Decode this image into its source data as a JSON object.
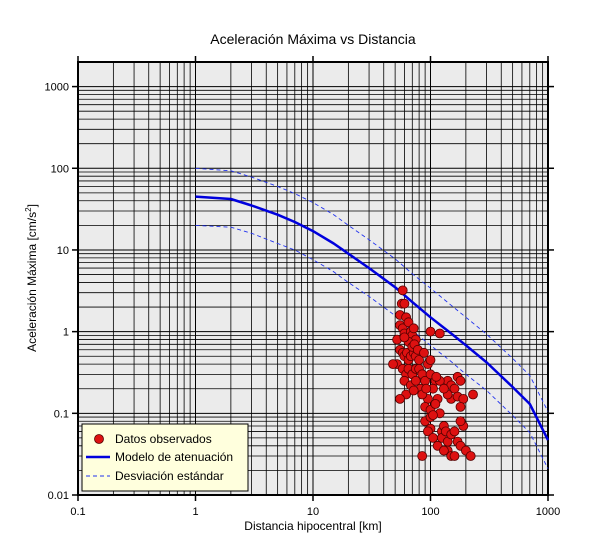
{
  "chart_data": {
    "type": "scatter",
    "title": "Aceleración Máxima vs Distancia",
    "xlabel": "Distancia hipocentral [km]",
    "ylabel_main": "Aceleración Máxima [cm/s",
    "ylabel_sup": "2",
    "ylabel_close": "]",
    "x_scale": "log",
    "y_scale": "log",
    "xlim": [
      0.1,
      1000
    ],
    "ylim": [
      0.01,
      2000
    ],
    "x_ticks": [
      {
        "value": 0.1,
        "label": "0.1"
      },
      {
        "value": 1,
        "label": "1"
      },
      {
        "value": 10,
        "label": "10"
      },
      {
        "value": 100,
        "label": "100"
      },
      {
        "value": 1000,
        "label": "1000"
      }
    ],
    "y_ticks": [
      {
        "value": 0.01,
        "label": "0.01"
      },
      {
        "value": 0.1,
        "label": "0.1"
      },
      {
        "value": 1,
        "label": "1"
      },
      {
        "value": 10,
        "label": "10"
      },
      {
        "value": 100,
        "label": "100"
      },
      {
        "value": 1000,
        "label": "1000"
      }
    ],
    "grid": true,
    "legend_position": "bottom-left",
    "colors": {
      "plot_background": "#ebebeb",
      "grid": "#000000",
      "points": "#dd1111",
      "model": "#0000dd",
      "deviation": "#2233ee",
      "legend_background": "#ffffdd"
    },
    "series": [
      {
        "name": "Datos observados",
        "kind": "scatter",
        "points": [
          [
            55,
            1.6
          ],
          [
            57,
            2.2
          ],
          [
            58,
            3.2
          ],
          [
            60,
            2.2
          ],
          [
            62,
            1.5
          ],
          [
            55,
            1.2
          ],
          [
            58,
            1.1
          ],
          [
            60,
            0.95
          ],
          [
            65,
            1.3
          ],
          [
            68,
            1.0
          ],
          [
            70,
            0.9
          ],
          [
            72,
            1.1
          ],
          [
            75,
            0.8
          ],
          [
            52,
            0.8
          ],
          [
            55,
            0.6
          ],
          [
            58,
            0.55
          ],
          [
            60,
            0.5
          ],
          [
            63,
            0.55
          ],
          [
            65,
            0.45
          ],
          [
            68,
            0.5
          ],
          [
            72,
            0.55
          ],
          [
            75,
            0.5
          ],
          [
            80,
            0.45
          ],
          [
            52,
            0.4
          ],
          [
            58,
            0.35
          ],
          [
            62,
            0.3
          ],
          [
            65,
            0.35
          ],
          [
            70,
            0.3
          ],
          [
            75,
            0.35
          ],
          [
            80,
            0.35
          ],
          [
            85,
            0.3
          ],
          [
            60,
            0.25
          ],
          [
            68,
            0.22
          ],
          [
            75,
            0.25
          ],
          [
            82,
            0.2
          ],
          [
            62,
            0.17
          ],
          [
            72,
            0.19
          ],
          [
            90,
            0.25
          ],
          [
            95,
            0.4
          ],
          [
            100,
            0.45
          ],
          [
            100,
            1.0
          ],
          [
            120,
            0.95
          ],
          [
            100,
            0.3
          ],
          [
            110,
            0.25
          ],
          [
            105,
            0.2
          ],
          [
            95,
            0.15
          ],
          [
            115,
            0.15
          ],
          [
            85,
            0.17
          ],
          [
            90,
            0.12
          ],
          [
            100,
            0.11
          ],
          [
            110,
            0.13
          ],
          [
            90,
            0.08
          ],
          [
            100,
            0.09
          ],
          [
            120,
            0.1
          ],
          [
            100,
            0.065
          ],
          [
            95,
            0.06
          ],
          [
            105,
            0.05
          ],
          [
            115,
            0.04
          ],
          [
            125,
            0.06
          ],
          [
            130,
            0.07
          ],
          [
            125,
            0.05
          ],
          [
            135,
            0.06
          ],
          [
            140,
            0.045
          ],
          [
            150,
            0.055
          ],
          [
            160,
            0.06
          ],
          [
            170,
            0.045
          ],
          [
            180,
            0.04
          ],
          [
            140,
            0.035
          ],
          [
            150,
            0.03
          ],
          [
            130,
            0.035
          ],
          [
            160,
            0.03
          ],
          [
            200,
            0.035
          ],
          [
            220,
            0.03
          ],
          [
            190,
            0.07
          ],
          [
            180,
            0.08
          ],
          [
            140,
            0.25
          ],
          [
            150,
            0.22
          ],
          [
            160,
            0.2
          ],
          [
            170,
            0.28
          ],
          [
            180,
            0.25
          ],
          [
            150,
            0.15
          ],
          [
            170,
            0.16
          ],
          [
            190,
            0.15
          ],
          [
            140,
            0.17
          ],
          [
            180,
            0.12
          ],
          [
            230,
            0.17
          ],
          [
            85,
            0.03
          ],
          [
            105,
            0.095
          ],
          [
            55,
            0.15
          ],
          [
            48,
            0.4
          ],
          [
            65,
            0.75
          ],
          [
            70,
            0.65
          ],
          [
            120,
            0.25
          ],
          [
            130,
            0.2
          ],
          [
            60,
            0.85
          ],
          [
            73,
            0.7
          ],
          [
            78,
            0.6
          ],
          [
            88,
            0.55
          ],
          [
            92,
            0.2
          ],
          [
            112,
            0.28
          ]
        ]
      },
      {
        "name": "Modelo de atenuación",
        "kind": "line",
        "points": [
          [
            1,
            45
          ],
          [
            2,
            42
          ],
          [
            3,
            35
          ],
          [
            5,
            27
          ],
          [
            7,
            22
          ],
          [
            10,
            17
          ],
          [
            15,
            12
          ],
          [
            20,
            9
          ],
          [
            30,
            6
          ],
          [
            50,
            3.5
          ],
          [
            70,
            2.3
          ],
          [
            100,
            1.5
          ],
          [
            150,
            0.95
          ],
          [
            200,
            0.68
          ],
          [
            300,
            0.42
          ],
          [
            500,
            0.21
          ],
          [
            700,
            0.13
          ],
          [
            1000,
            0.047
          ]
        ]
      },
      {
        "name": "Desviación estándar",
        "kind": "dashed",
        "points_upper": [
          [
            1,
            100
          ],
          [
            2,
            93
          ],
          [
            3,
            78
          ],
          [
            5,
            60
          ],
          [
            7,
            49
          ],
          [
            10,
            38
          ],
          [
            15,
            27
          ],
          [
            20,
            20
          ],
          [
            30,
            13.3
          ],
          [
            50,
            7.8
          ],
          [
            70,
            5.1
          ],
          [
            100,
            3.4
          ],
          [
            150,
            2.1
          ],
          [
            200,
            1.5
          ],
          [
            300,
            0.93
          ],
          [
            500,
            0.47
          ],
          [
            700,
            0.29
          ],
          [
            1000,
            0.105
          ]
        ],
        "points_lower": [
          [
            1,
            20
          ],
          [
            2,
            19
          ],
          [
            3,
            16
          ],
          [
            5,
            12
          ],
          [
            7,
            10
          ],
          [
            10,
            7.6
          ],
          [
            15,
            5.4
          ],
          [
            20,
            4.0
          ],
          [
            30,
            2.7
          ],
          [
            50,
            1.57
          ],
          [
            70,
            1.03
          ],
          [
            100,
            0.68
          ],
          [
            150,
            0.43
          ],
          [
            200,
            0.3
          ],
          [
            300,
            0.19
          ],
          [
            500,
            0.094
          ],
          [
            700,
            0.058
          ],
          [
            1000,
            0.021
          ]
        ]
      }
    ]
  }
}
